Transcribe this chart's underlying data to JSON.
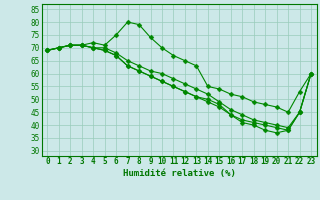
{
  "title": "",
  "xlabel": "Humidité relative (%)",
  "ylabel": "",
  "background_color": "#cce8e8",
  "grid_color": "#99ccbb",
  "line_color": "#008800",
  "x": [
    0,
    1,
    2,
    3,
    4,
    5,
    6,
    7,
    8,
    9,
    10,
    11,
    12,
    13,
    14,
    15,
    16,
    17,
    18,
    19,
    20,
    21,
    22,
    23
  ],
  "xtick_labels": [
    "0",
    "1",
    "2",
    "3",
    "4",
    "5",
    "6",
    "7",
    "8",
    "9",
    "10",
    "11",
    "12",
    "13",
    "14",
    "15",
    "16",
    "17",
    "18",
    "19",
    "20",
    "21",
    "22",
    "23"
  ],
  "series": [
    [
      69,
      70,
      71,
      71,
      72,
      71,
      75,
      80,
      79,
      74,
      70,
      67,
      65,
      63,
      55,
      54,
      52,
      51,
      49,
      48,
      47,
      45,
      53,
      60
    ],
    [
      69,
      70,
      71,
      71,
      70,
      70,
      68,
      65,
      63,
      61,
      60,
      58,
      56,
      54,
      52,
      49,
      46,
      44,
      42,
      41,
      40,
      39,
      45,
      60
    ],
    [
      69,
      70,
      71,
      71,
      70,
      69,
      67,
      63,
      61,
      59,
      57,
      55,
      53,
      51,
      49,
      47,
      44,
      41,
      40,
      38,
      37,
      38,
      45,
      60
    ],
    [
      69,
      70,
      71,
      71,
      70,
      69,
      67,
      63,
      61,
      59,
      57,
      55,
      53,
      51,
      50,
      48,
      44,
      42,
      41,
      40,
      39,
      38,
      45,
      60
    ]
  ],
  "ylim": [
    28,
    87
  ],
  "yticks": [
    30,
    35,
    40,
    45,
    50,
    55,
    60,
    65,
    70,
    75,
    80,
    85
  ],
  "ytick_labels": [
    "30",
    "35",
    "40",
    "45",
    "50",
    "55",
    "60",
    "65",
    "70",
    "75",
    "80",
    "85"
  ],
  "xlim": [
    -0.5,
    23.5
  ],
  "tick_fontsize": 5.5,
  "xlabel_fontsize": 6.5,
  "linewidth": 0.8,
  "markersize": 2.5
}
